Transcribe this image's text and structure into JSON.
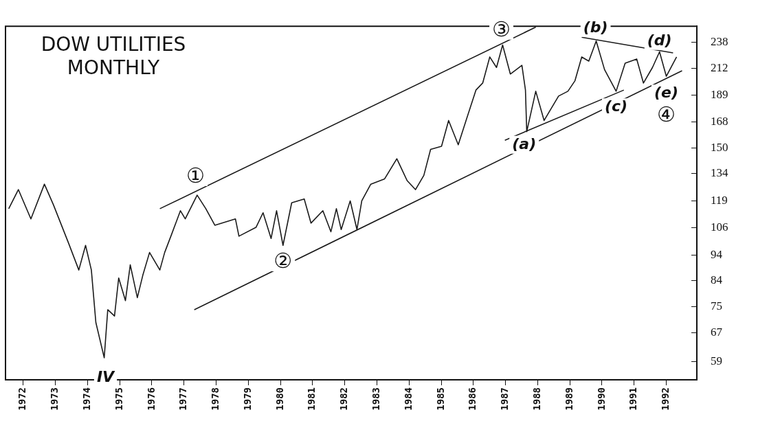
{
  "chart_data": {
    "type": "line",
    "title": "DOW UTILITIES MONTHLY",
    "series": [
      {
        "color": "#1a1a1a",
        "x": [
          1971.55,
          1971.85,
          1972.24,
          1972.66,
          1972.94,
          1973.41,
          1973.73,
          1973.94,
          1974.12,
          1974.26,
          1974.52,
          1974.63,
          1974.84,
          1974.97,
          1975.18,
          1975.33,
          1975.55,
          1975.72,
          1975.93,
          1976.25,
          1976.4,
          1976.62,
          1976.89,
          1977.04,
          1977.41,
          1977.68,
          1977.96,
          1978.6,
          1978.71,
          1979.24,
          1979.46,
          1979.71,
          1979.88,
          1980.08,
          1980.35,
          1980.74,
          1980.95,
          1981.32,
          1981.57,
          1981.74,
          1981.89,
          1982.17,
          1982.38,
          1982.53,
          1982.81,
          1983.24,
          1983.62,
          1983.94,
          1984.2,
          1984.46,
          1984.67,
          1985.01,
          1985.23,
          1985.53,
          1985.8,
          1986.08,
          1986.29,
          1986.51,
          1986.72,
          1986.91,
          1987.15,
          1987.51,
          1987.62,
          1987.66,
          1987.94,
          1988.2,
          1988.65,
          1988.94,
          1989.16,
          1989.37,
          1989.59,
          1989.82,
          1990.08,
          1990.44,
          1990.72,
          1991.08,
          1991.29,
          1991.57,
          1991.79,
          1992.0,
          1992.32
        ],
        "values": [
          115,
          125,
          110,
          128,
          117,
          99,
          88,
          98,
          88,
          70,
          60,
          74,
          72,
          85,
          77,
          90,
          78,
          86,
          95,
          88,
          95,
          103,
          114,
          110,
          122,
          115,
          107,
          110,
          102,
          106,
          113,
          101,
          114,
          98,
          118,
          120,
          108,
          114,
          104,
          115,
          105,
          119,
          105,
          119,
          128,
          131,
          143,
          130,
          125,
          133,
          149,
          151,
          169,
          152,
          171,
          193,
          199,
          223,
          213,
          235,
          207,
          215,
          193,
          161,
          192,
          169,
          188,
          192,
          201,
          223,
          219,
          239,
          211,
          192,
          217,
          221,
          199,
          213,
          228,
          205,
          223
        ]
      },
      {
        "type": "line",
        "color": "#1a1a1a",
        "x": [
          1976.25,
          1987.94
        ],
        "values": [
          115,
          254
        ]
      },
      {
        "type": "line",
        "color": "#1a1a1a",
        "x": [
          1977.32,
          1992.49
        ],
        "values": [
          74,
          210
        ]
      },
      {
        "type": "line",
        "color": "#1a1a1a",
        "x": [
          1986.98,
          1990.68
        ],
        "values": [
          155,
          193
        ]
      },
      {
        "type": "line",
        "color": "#1a1a1a",
        "x": [
          1989.37,
          1992.21
        ],
        "values": [
          243,
          227
        ]
      }
    ],
    "xlim": [
      1971.45,
      1992.95
    ],
    "xticks": [
      1972,
      1973,
      1974,
      1975,
      1976,
      1977,
      1978,
      1979,
      1980,
      1981,
      1982,
      1983,
      1984,
      1985,
      1986,
      1987,
      1988,
      1989,
      1990,
      1991,
      1992
    ],
    "ylim": [
      54.5,
      255
    ],
    "log": "y",
    "yticks": [
      59,
      67,
      75,
      84,
      94,
      106,
      119,
      134,
      150,
      168,
      189,
      212,
      238
    ],
    "annotations": [
      {
        "text": "①",
        "x": 1977.36,
        "y": 132
      },
      {
        "text": "②",
        "x": 1980.08,
        "y": 91
      },
      {
        "text": "③",
        "x": 1986.87,
        "y": 250
      },
      {
        "text": "④",
        "x": 1992.0,
        "y": 172
      },
      {
        "text": "(a)",
        "x": 1987.58,
        "y": 152
      },
      {
        "text": "(b)",
        "x": 1989.8,
        "y": 253
      },
      {
        "text": "(c)",
        "x": 1990.44,
        "y": 179
      },
      {
        "text": "(d)",
        "x": 1991.79,
        "y": 239
      },
      {
        "text": "(e)",
        "x": 1992.0,
        "y": 190
      },
      {
        "text": "IV",
        "x": 1974.56,
        "y": 55
      }
    ],
    "legend": false,
    "marker": "none",
    "line_style": "solid"
  }
}
